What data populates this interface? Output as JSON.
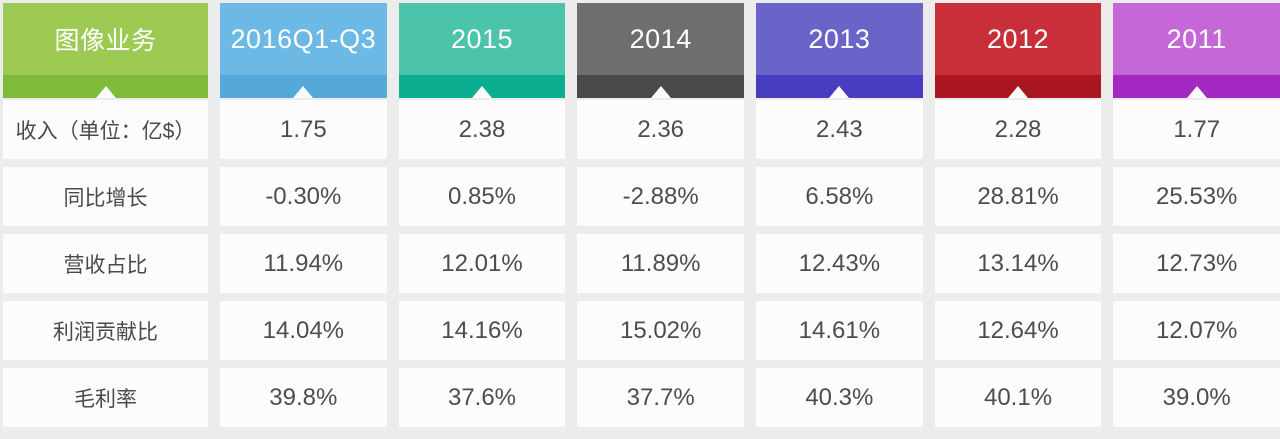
{
  "colors": {
    "page_background": "#ececec",
    "cell_background": "#fcfcfc",
    "cell_text": "#4d4d4d",
    "header_text": "#ffffff"
  },
  "table": {
    "columns": [
      {
        "label": "图像业务",
        "color_main": "#9cca52",
        "color_strip": "#7fba3a"
      },
      {
        "label": "2016Q1-Q3",
        "color_main": "#6db9e5",
        "color_strip": "#55a8da"
      },
      {
        "label": "2015",
        "color_main": "#4bc4ab",
        "color_strip": "#0cae91"
      },
      {
        "label": "2014",
        "color_main": "#6e6e6e",
        "color_strip": "#4a4a4a"
      },
      {
        "label": "2013",
        "color_main": "#6a63c8",
        "color_strip": "#483dc1"
      },
      {
        "label": "2012",
        "color_main": "#c92f38",
        "color_strip": "#aa1722"
      },
      {
        "label": "2011",
        "color_main": "#c667d8",
        "color_strip": "#a428c2"
      }
    ],
    "rows": [
      {
        "label": "收入（单位：亿$）",
        "values": [
          "1.75",
          "2.38",
          "2.36",
          "2.43",
          "2.28",
          "1.77"
        ]
      },
      {
        "label": "同比增长",
        "values": [
          "-0.30%",
          "0.85%",
          "-2.88%",
          "6.58%",
          "28.81%",
          "25.53%"
        ]
      },
      {
        "label": "营收占比",
        "values": [
          "11.94%",
          "12.01%",
          "11.89%",
          "12.43%",
          "13.14%",
          "12.73%"
        ]
      },
      {
        "label": "利润贡献比",
        "values": [
          "14.04%",
          "14.16%",
          "15.02%",
          "14.61%",
          "12.64%",
          "12.07%"
        ]
      },
      {
        "label": "毛利率",
        "values": [
          "39.8%",
          "37.6%",
          "37.7%",
          "40.3%",
          "40.1%",
          "39.0%"
        ]
      }
    ]
  },
  "chart_data": {
    "type": "table",
    "title": "图像业务",
    "columns": [
      "2016Q1-Q3",
      "2015",
      "2014",
      "2013",
      "2012",
      "2011"
    ],
    "rows": [
      {
        "label": "收入（单位：亿$）",
        "values": [
          1.75,
          2.38,
          2.36,
          2.43,
          2.28,
          1.77
        ]
      },
      {
        "label": "同比增长",
        "values": [
          "-0.30%",
          "0.85%",
          "-2.88%",
          "6.58%",
          "28.81%",
          "25.53%"
        ]
      },
      {
        "label": "营收占比",
        "values": [
          "11.94%",
          "12.01%",
          "11.89%",
          "12.43%",
          "13.14%",
          "12.73%"
        ]
      },
      {
        "label": "利润贡献比",
        "values": [
          "14.04%",
          "14.16%",
          "15.02%",
          "14.61%",
          "12.64%",
          "12.07%"
        ]
      },
      {
        "label": "毛利率",
        "values": [
          "39.8%",
          "37.6%",
          "37.7%",
          "40.3%",
          "40.1%",
          "39.0%"
        ]
      }
    ]
  }
}
